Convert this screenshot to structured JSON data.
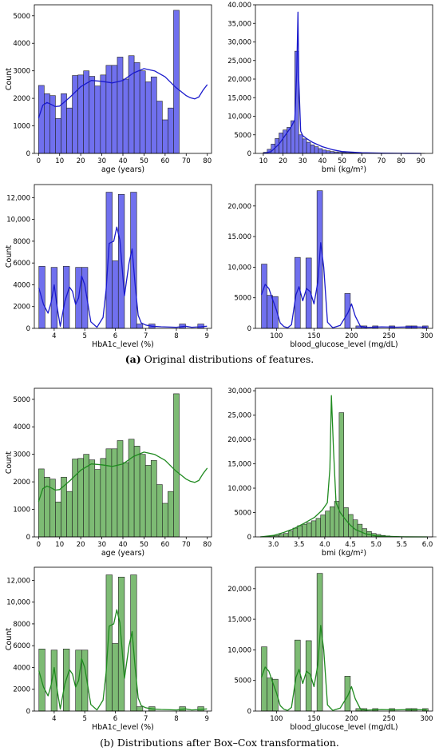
{
  "captions": [
    {
      "tag": "(a)",
      "text": "Original distributions of features."
    },
    {
      "tag": "(b)",
      "text": "Distributions after Box–Cox transformation."
    }
  ],
  "colors": {
    "blue_fill": "#7070ee",
    "blue_line": "#1a1acc",
    "green_fill": "#7dbb74",
    "green_line": "#1f8a1f",
    "edge": "#222222"
  },
  "chart_data": [
    {
      "id": "age-original",
      "type": "bar",
      "subtype": "histogram+kde",
      "color": "blue",
      "xlabel": "age (years)",
      "ylabel": "Count",
      "xlim": [
        -2,
        82
      ],
      "ylim": [
        0,
        5400
      ],
      "xticks": [
        0,
        10,
        20,
        30,
        40,
        50,
        60,
        70,
        80
      ],
      "xtick_labels": [
        "0",
        "10",
        "20",
        "30",
        "40",
        "50",
        "60",
        "70",
        "80"
      ],
      "yticks": [
        0,
        1000,
        2000,
        3000,
        4000,
        5000
      ],
      "ytick_labels": [
        "0",
        "1000",
        "2000",
        "3000",
        "4000",
        "5000"
      ],
      "bins": {
        "start": 0,
        "width": 2.667,
        "values": [
          2470,
          2170,
          2100,
          1270,
          2170,
          1650,
          2830,
          2850,
          3000,
          2800,
          2450,
          2850,
          3200,
          3200,
          3500,
          2700,
          3550,
          3300,
          3000,
          2600,
          2780,
          1900,
          1220,
          1650,
          5200
        ]
      },
      "kde": {
        "x": [
          0,
          2,
          4,
          6,
          8,
          10,
          12,
          15,
          20,
          25,
          30,
          35,
          40,
          45,
          50,
          55,
          60,
          65,
          68,
          70,
          72,
          74,
          76,
          78,
          80
        ],
        "y": [
          1280,
          1750,
          1850,
          1780,
          1700,
          1720,
          1850,
          2050,
          2420,
          2650,
          2620,
          2560,
          2650,
          2920,
          3080,
          3000,
          2780,
          2400,
          2220,
          2100,
          2020,
          1980,
          2050,
          2300,
          2500
        ]
      }
    },
    {
      "id": "bmi-original",
      "type": "bar",
      "subtype": "histogram+kde",
      "color": "blue",
      "xlabel": "bmi (kg/m²)",
      "ylabel": "",
      "xlim": [
        6,
        96
      ],
      "ylim": [
        0,
        40000
      ],
      "xticks": [
        10,
        20,
        30,
        40,
        50,
        60,
        70,
        80,
        90
      ],
      "xtick_labels": [
        "10",
        "20",
        "30",
        "40",
        "50",
        "60",
        "70",
        "80",
        "90"
      ],
      "yticks": [
        0,
        5000,
        10000,
        15000,
        20000,
        25000,
        30000,
        35000,
        40000
      ],
      "ytick_labels": [
        "0",
        "5000",
        "10,000",
        "15,000",
        "20,000",
        "25,000",
        "30,000",
        "35,000",
        "40.000"
      ],
      "bins": {
        "start": 10,
        "width": 2,
        "values": [
          300,
          1100,
          2500,
          4000,
          5500,
          6300,
          7000,
          8800,
          27500,
          5000,
          3900,
          3000,
          2300,
          1800,
          1300,
          900,
          700,
          500,
          400,
          300,
          250,
          200,
          150,
          120,
          100,
          80,
          60,
          50,
          40,
          30,
          30,
          20,
          20,
          20,
          15,
          15,
          10,
          10,
          10,
          10,
          10
        ]
      },
      "kde": {
        "x": [
          10,
          14,
          18,
          20,
          22,
          24,
          26,
          27,
          27.6,
          28,
          29,
          30,
          32,
          35,
          40,
          45,
          50,
          60,
          70,
          80,
          90
        ],
        "y": [
          0,
          500,
          2500,
          4000,
          5500,
          7000,
          9000,
          22000,
          38000,
          20000,
          6000,
          4800,
          4000,
          3000,
          1800,
          1000,
          500,
          200,
          80,
          30,
          0
        ]
      }
    },
    {
      "id": "hba1c-original",
      "type": "bar",
      "subtype": "histogram+kde",
      "color": "blue",
      "xlabel": "HbA1c_level (%)",
      "ylabel": "Count",
      "xlim": [
        3.35,
        9.15
      ],
      "ylim": [
        0,
        13200
      ],
      "xticks": [
        4,
        5,
        6,
        7,
        8,
        9
      ],
      "xtick_labels": [
        "4",
        "5",
        "6",
        "7",
        "8",
        "9"
      ],
      "yticks": [
        0,
        2000,
        4000,
        6000,
        8000,
        10000,
        12000
      ],
      "ytick_labels": [
        "0",
        "2000",
        "4000",
        "6000",
        "8000",
        "10,000",
        "12,000"
      ],
      "bins": {
        "start": 3.5,
        "width": 0.2,
        "values": [
          5700,
          0,
          5600,
          0,
          5700,
          0,
          5600,
          5600,
          0,
          0,
          0,
          12500,
          6200,
          12300,
          0,
          12500,
          400,
          0,
          400,
          0,
          0,
          0,
          0,
          400,
          0,
          0,
          400
        ]
      },
      "kde": {
        "x": [
          3.5,
          3.65,
          3.8,
          3.9,
          4.0,
          4.1,
          4.2,
          4.35,
          4.5,
          4.6,
          4.7,
          4.8,
          4.9,
          5.0,
          5.2,
          5.4,
          5.6,
          5.7,
          5.8,
          5.95,
          6.05,
          6.15,
          6.3,
          6.45,
          6.55,
          6.65,
          6.75,
          6.85,
          7.0,
          7.2,
          7.5,
          8.0,
          8.3,
          8.5,
          8.8,
          9.0
        ],
        "y": [
          3700,
          2200,
          1400,
          2400,
          4000,
          1900,
          200,
          2500,
          3800,
          3400,
          2200,
          2800,
          4800,
          4000,
          600,
          100,
          1000,
          3500,
          7800,
          8000,
          9300,
          8100,
          3000,
          6000,
          7300,
          4000,
          1200,
          500,
          300,
          200,
          150,
          100,
          200,
          100,
          150,
          200
        ]
      }
    },
    {
      "id": "glucose-original",
      "type": "bar",
      "subtype": "histogram+kde",
      "color": "blue",
      "xlabel": "blood_glucose_level (mg/dL)",
      "ylabel": "",
      "xlim": [
        72,
        308
      ],
      "ylim": [
        0,
        23500
      ],
      "xticks": [
        100,
        150,
        200,
        250,
        300
      ],
      "xtick_labels": [
        "100",
        "150",
        "200",
        "250",
        "300"
      ],
      "yticks": [
        0,
        5000,
        10000,
        15000,
        20000
      ],
      "ytick_labels": [
        "0",
        "5000",
        "10,000",
        "15.000",
        "20,000"
      ],
      "bins": {
        "start": 80,
        "width": 7.4,
        "values": [
          10500,
          5400,
          5200,
          0,
          0,
          0,
          11600,
          0,
          11500,
          0,
          22500,
          0,
          0,
          0,
          0,
          5700,
          0,
          400,
          400,
          0,
          400,
          0,
          0,
          400,
          0,
          0,
          400,
          400,
          0,
          400
        ]
      },
      "kde": {
        "x": [
          80,
          85,
          90,
          95,
          100,
          105,
          110,
          115,
          120,
          126,
          130,
          135,
          140,
          145,
          150,
          155,
          159,
          163,
          168,
          175,
          185,
          195,
          200,
          205,
          212,
          220,
          240,
          260,
          280,
          300
        ],
        "y": [
          5500,
          7200,
          6500,
          4700,
          3000,
          900,
          300,
          100,
          600,
          5500,
          6800,
          4500,
          6500,
          6000,
          4000,
          7500,
          14000,
          10000,
          1000,
          100,
          500,
          2500,
          4000,
          2000,
          300,
          150,
          250,
          200,
          250,
          200
        ]
      }
    },
    {
      "id": "age-boxcox",
      "type": "bar",
      "subtype": "histogram+kde",
      "color": "green",
      "xlabel": "age (years)",
      "ylabel": "Count",
      "xlim": [
        -2,
        82
      ],
      "ylim": [
        0,
        5400
      ],
      "xticks": [
        0,
        10,
        20,
        30,
        40,
        50,
        60,
        70,
        80
      ],
      "xtick_labels": [
        "0",
        "10",
        "20",
        "30",
        "40",
        "50",
        "60",
        "70",
        "80"
      ],
      "yticks": [
        0,
        1000,
        2000,
        3000,
        4000,
        5000
      ],
      "ytick_labels": [
        "0",
        "1000",
        "2000",
        "3000",
        "4000",
        "5000"
      ],
      "bins": {
        "start": 0,
        "width": 2.667,
        "values": [
          2470,
          2170,
          2100,
          1270,
          2170,
          1650,
          2830,
          2850,
          3000,
          2800,
          2450,
          2850,
          3200,
          3200,
          3500,
          2700,
          3550,
          3300,
          3000,
          2600,
          2780,
          1900,
          1220,
          1650,
          5200
        ]
      },
      "kde": {
        "x": [
          0,
          2,
          4,
          6,
          8,
          10,
          12,
          15,
          20,
          25,
          30,
          35,
          40,
          45,
          50,
          55,
          60,
          65,
          68,
          70,
          72,
          74,
          76,
          78,
          80
        ],
        "y": [
          1280,
          1750,
          1850,
          1780,
          1700,
          1720,
          1850,
          2050,
          2420,
          2650,
          2620,
          2560,
          2650,
          2920,
          3080,
          3000,
          2780,
          2400,
          2220,
          2100,
          2020,
          1980,
          2050,
          2300,
          2500
        ]
      }
    },
    {
      "id": "bmi-boxcox",
      "type": "bar",
      "subtype": "histogram+kde",
      "color": "green",
      "xlabel": "bmi (kg/m²)",
      "ylabel": "",
      "xlim": [
        2.65,
        6.1
      ],
      "ylim": [
        0,
        30500
      ],
      "xticks": [
        3.0,
        3.5,
        4.0,
        4.5,
        5.0,
        5.5,
        6.0
      ],
      "xtick_labels": [
        "3.0",
        "3.5",
        "4.0",
        "4.5",
        "5.0",
        "5.5",
        "6.0"
      ],
      "yticks": [
        0,
        5000,
        10000,
        15000,
        20000,
        25000,
        30000
      ],
      "ytick_labels": [
        "0",
        "5000",
        "10,000",
        "15,000",
        "20,000",
        "25,000",
        "30,000"
      ],
      "bins": {
        "start": 2.75,
        "width": 0.09,
        "values": [
          50,
          100,
          200,
          300,
          500,
          700,
          1200,
          1800,
          2300,
          2600,
          2900,
          3300,
          3800,
          4500,
          5300,
          6200,
          7300,
          25500,
          6000,
          4600,
          3500,
          2600,
          1700,
          1100,
          700,
          500,
          300,
          200,
          100,
          60,
          40,
          30,
          20,
          20,
          10,
          10,
          10,
          10
        ]
      },
      "kde": {
        "x": [
          2.75,
          3.0,
          3.2,
          3.4,
          3.6,
          3.8,
          3.95,
          4.05,
          4.1,
          4.13,
          4.17,
          4.22,
          4.3,
          4.4,
          4.5,
          4.6,
          4.8,
          5.0,
          5.5,
          6.0
        ],
        "y": [
          0,
          300,
          900,
          1700,
          2800,
          4000,
          5500,
          7000,
          14000,
          29000,
          18000,
          7000,
          5000,
          3600,
          2400,
          1500,
          600,
          200,
          20,
          0
        ]
      }
    },
    {
      "id": "hba1c-boxcox",
      "type": "bar",
      "subtype": "histogram+kde",
      "color": "green",
      "xlabel": "HbA1c_level (%)",
      "ylabel": "Count",
      "xlim": [
        3.35,
        9.15
      ],
      "ylim": [
        0,
        13200
      ],
      "xticks": [
        4,
        5,
        6,
        7,
        8,
        9
      ],
      "xtick_labels": [
        "4",
        "5",
        "6",
        "7",
        "8",
        "9"
      ],
      "yticks": [
        0,
        2000,
        4000,
        6000,
        8000,
        10000,
        12000
      ],
      "ytick_labels": [
        "0",
        "2000",
        "4000",
        "6000",
        "8000",
        "10,000",
        "12,000"
      ],
      "bins": {
        "start": 3.5,
        "width": 0.2,
        "values": [
          5700,
          0,
          5600,
          0,
          5700,
          0,
          5600,
          5600,
          0,
          0,
          0,
          12500,
          6200,
          12300,
          0,
          12500,
          400,
          0,
          400,
          0,
          0,
          0,
          0,
          400,
          0,
          0,
          400
        ]
      },
      "kde": {
        "x": [
          3.5,
          3.65,
          3.8,
          3.9,
          4.0,
          4.1,
          4.2,
          4.35,
          4.5,
          4.6,
          4.7,
          4.8,
          4.9,
          5.0,
          5.2,
          5.4,
          5.6,
          5.7,
          5.8,
          5.95,
          6.05,
          6.15,
          6.3,
          6.45,
          6.55,
          6.65,
          6.75,
          6.85,
          7.0,
          7.2,
          7.5,
          8.0,
          8.3,
          8.5,
          8.8,
          9.0
        ],
        "y": [
          3700,
          2200,
          1400,
          2400,
          4000,
          1900,
          200,
          2500,
          3800,
          3400,
          2200,
          2800,
          4800,
          4000,
          600,
          100,
          1000,
          3500,
          7800,
          8000,
          9300,
          8100,
          3000,
          6000,
          7300,
          4000,
          1200,
          500,
          300,
          200,
          150,
          100,
          200,
          100,
          150,
          200
        ]
      }
    },
    {
      "id": "glucose-boxcox",
      "type": "bar",
      "subtype": "histogram+kde",
      "color": "green",
      "xlabel": "blood_glucose_level (mg/dL)",
      "ylabel": "",
      "xlim": [
        72,
        308
      ],
      "ylim": [
        0,
        23500
      ],
      "xticks": [
        100,
        150,
        200,
        250,
        300
      ],
      "xtick_labels": [
        "100",
        "150",
        "200",
        "250",
        "300"
      ],
      "yticks": [
        0,
        5000,
        10000,
        15000,
        20000
      ],
      "ytick_labels": [
        "0",
        "5000",
        "10,000",
        "15,000",
        "20,000"
      ],
      "bins": {
        "start": 80,
        "width": 7.4,
        "values": [
          10500,
          5400,
          5200,
          0,
          0,
          0,
          11600,
          0,
          11500,
          0,
          22500,
          0,
          0,
          0,
          0,
          5700,
          0,
          400,
          400,
          0,
          400,
          0,
          0,
          400,
          0,
          0,
          400,
          400,
          0,
          400
        ]
      },
      "kde": {
        "x": [
          80,
          85,
          90,
          95,
          100,
          105,
          110,
          115,
          120,
          126,
          130,
          135,
          140,
          145,
          150,
          155,
          159,
          163,
          168,
          175,
          185,
          195,
          200,
          205,
          212,
          220,
          240,
          260,
          280,
          300
        ],
        "y": [
          5500,
          7200,
          6500,
          4700,
          3000,
          900,
          300,
          100,
          600,
          5500,
          6800,
          4500,
          6500,
          6000,
          4000,
          7500,
          14000,
          10000,
          1000,
          100,
          500,
          2500,
          4000,
          2000,
          300,
          150,
          250,
          200,
          250,
          200
        ]
      }
    }
  ]
}
